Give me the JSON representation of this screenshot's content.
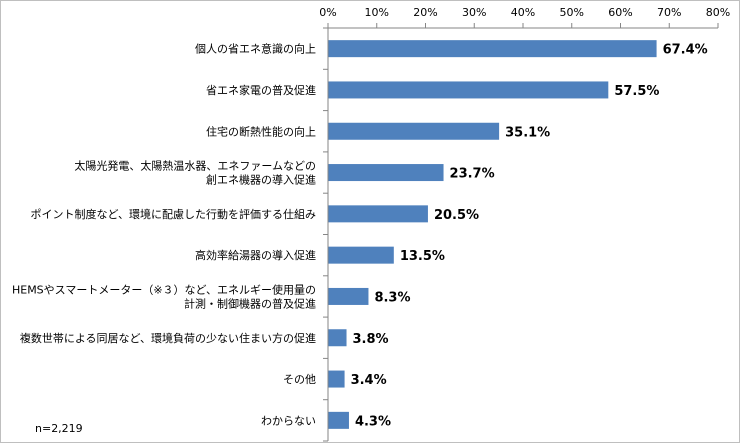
{
  "chart_data": {
    "type": "bar",
    "orientation": "horizontal",
    "categories": [
      [
        "個人の省エネ意識の向上"
      ],
      [
        "省エネ家電の普及促進"
      ],
      [
        "住宅の断熱性能の向上"
      ],
      [
        "太陽光発電、太陽熱温水器、エネファームなどの",
        "創エネ機器の導入促進"
      ],
      [
        "ポイント制度など、環境に配慮した行動を評価する仕組み"
      ],
      [
        "高効率給湯器の導入促進"
      ],
      [
        "HEMSやスマートメーター（※３）など、エネルギー使用量の",
        "計測・制御機器の普及促進"
      ],
      [
        "複数世帯による同居など、環境負荷の少ない住まい方の促進"
      ],
      [
        "その他"
      ],
      [
        "わからない"
      ]
    ],
    "values": [
      67.4,
      57.5,
      35.1,
      23.7,
      20.5,
      13.5,
      8.3,
      3.8,
      3.4,
      4.3
    ],
    "value_labels": [
      "67.4%",
      "57.5%",
      "35.1%",
      "23.7%",
      "20.5%",
      "13.5%",
      "8.3%",
      "3.8%",
      "3.4%",
      "4.3%"
    ],
    "xlim": [
      0,
      80
    ],
    "x_ticks": [
      0,
      10,
      20,
      30,
      40,
      50,
      60,
      70,
      80
    ],
    "x_tick_labels": [
      "0%",
      "10%",
      "20%",
      "30%",
      "40%",
      "50%",
      "60%",
      "70%",
      "80%"
    ],
    "x_axis_position": "top",
    "grid": false,
    "bar_color": "#4f81bd",
    "note": "n=2,219"
  }
}
